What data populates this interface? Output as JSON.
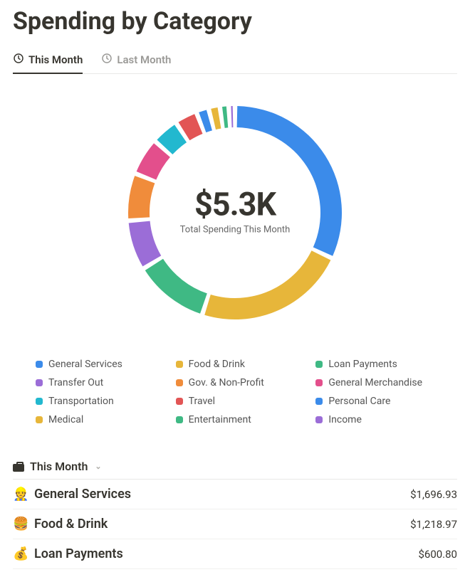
{
  "title": "Spending by Category",
  "tabs": [
    {
      "label": "This Month",
      "active": true
    },
    {
      "label": "Last Month",
      "active": false
    }
  ],
  "donut": {
    "center_amount": "$5.3K",
    "center_caption": "Total Spending This Month",
    "outer_radius": 150,
    "inner_radius": 120,
    "gap_degrees": 2.5,
    "background_color": "#ffffff",
    "slices": [
      {
        "label": "General Services",
        "value": 1696.93,
        "color": "#3b8bea"
      },
      {
        "label": "Food & Drink",
        "value": 1218.97,
        "color": "#e7b63a"
      },
      {
        "label": "Loan Payments",
        "value": 600.8,
        "color": "#3fb984"
      },
      {
        "label": "Transfer Out",
        "value": 400.0,
        "color": "#9b6dd7"
      },
      {
        "label": "Gov. & Non-Profit",
        "value": 380.0,
        "color": "#f08c3b"
      },
      {
        "label": "General Merchandise",
        "value": 300.0,
        "color": "#e34f8c"
      },
      {
        "label": "Transportation",
        "value": 220.0,
        "color": "#22b8cf"
      },
      {
        "label": "Travel",
        "value": 180.0,
        "color": "#e25555"
      },
      {
        "label": "Personal Care",
        "value": 100.0,
        "color": "#3b8bea"
      },
      {
        "label": "Medical",
        "value": 90.0,
        "color": "#e7b63a"
      },
      {
        "label": "Entertainment",
        "value": 70.0,
        "color": "#3fb984"
      },
      {
        "label": "Income",
        "value": 50.0,
        "color": "#9b6dd7"
      }
    ]
  },
  "legend_columns": 3,
  "list": {
    "header_icon": "briefcase",
    "header_label": "This Month",
    "rows": [
      {
        "icon": "👷",
        "label": "General Services",
        "amount": "$1,696.93"
      },
      {
        "icon": "🍔",
        "label": "Food & Drink",
        "amount": "$1,218.97"
      },
      {
        "icon": "💰",
        "label": "Loan Payments",
        "amount": "$600.80"
      }
    ]
  }
}
